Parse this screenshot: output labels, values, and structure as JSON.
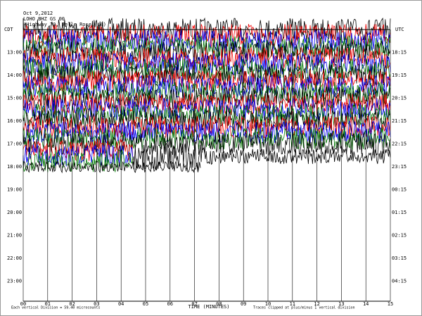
{
  "header": {
    "date": "Oct 9,2012",
    "station": "LOHO BHZ GS 00",
    "location": "(Highway 70, Belle Rose, LA)"
  },
  "left_axis": {
    "title": "CDT",
    "labels": [
      "13:00",
      "14:00",
      "15:00",
      "16:00",
      "17:00",
      "18:00",
      "19:00",
      "20:00",
      "21:00",
      "22:00",
      "23:00"
    ]
  },
  "right_axis": {
    "title": "UTC",
    "labels": [
      "18:15",
      "19:15",
      "20:15",
      "21:15",
      "22:15",
      "23:15",
      "00:15",
      "01:15",
      "02:15",
      "03:15",
      "04:15"
    ]
  },
  "x_axis": {
    "label": "TIME (MINUTES)",
    "ticks": [
      "00",
      "01",
      "02",
      "03",
      "04",
      "05",
      "06",
      "07",
      "08",
      "09",
      "10",
      "11",
      "12",
      "13",
      "14",
      "15"
    ]
  },
  "footer": {
    "left": "Each vertical Division = 59.40 microcounts",
    "right": "Traces clipped at plus/minus 1 vertical division"
  }
}
